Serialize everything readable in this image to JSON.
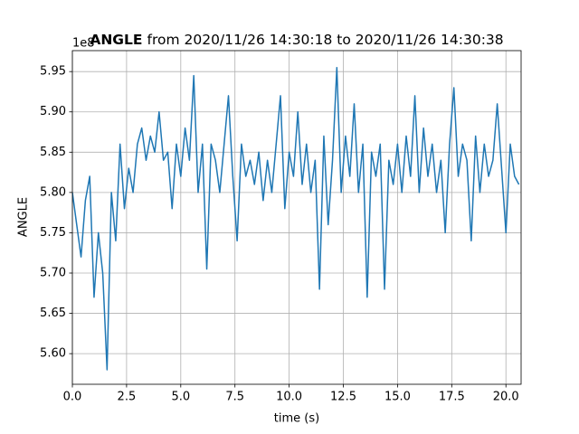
{
  "chart_data": {
    "type": "line",
    "title": {
      "variable": "ANGLE",
      "range": "from 2020/11/26 14:30:18 to 2020/11/26 14:30:38"
    },
    "x_label": "time (s)",
    "y_label": "ANGLE",
    "y_offset_label": "1e8",
    "color": "#1f77b4",
    "grid": true,
    "xlim": [
      0,
      20.7
    ],
    "ylim": [
      5.562,
      5.976
    ],
    "xticks": [
      {
        "value": 0,
        "label": "0.0"
      },
      2.5,
      {
        "value": 5,
        "label": "5.0"
      },
      7.5,
      {
        "value": 10,
        "label": "10.0"
      },
      12.5,
      {
        "value": 15,
        "label": "15.0"
      },
      17.5,
      {
        "value": 20,
        "label": "20.0"
      }
    ],
    "yticks": [
      {
        "value": 5.6,
        "label": "5.60"
      },
      5.65,
      {
        "value": 5.7,
        "label": "5.70"
      },
      5.75,
      {
        "value": 5.8,
        "label": "5.80"
      },
      5.85,
      {
        "value": 5.9,
        "label": "5.90"
      },
      5.95
    ],
    "x": [
      0,
      0.2,
      0.4,
      0.6,
      0.8,
      1,
      1.2,
      1.4,
      1.6,
      1.8,
      2,
      2.2,
      2.4,
      2.6,
      2.8,
      3,
      3.2,
      3.4,
      3.6,
      3.8,
      4,
      4.2,
      4.4,
      4.6,
      4.8,
      5,
      5.2,
      5.4,
      5.6,
      5.8,
      6,
      6.2,
      6.4,
      6.6,
      6.8,
      7,
      7.2,
      7.4,
      7.6,
      7.8,
      8,
      8.2,
      8.4,
      8.6,
      8.8,
      9,
      9.2,
      9.4,
      9.6,
      9.8,
      10,
      10.2,
      10.4,
      10.6,
      10.8,
      11,
      11.2,
      11.4,
      11.6,
      11.8,
      12,
      12.2,
      12.4,
      12.6,
      12.8,
      13,
      13.2,
      13.4,
      13.6,
      13.8,
      14,
      14.2,
      14.4,
      14.6,
      14.8,
      15,
      15.2,
      15.4,
      15.6,
      15.8,
      16,
      16.2,
      16.4,
      16.6,
      16.8,
      17,
      17.2,
      17.4,
      17.6,
      17.8,
      18,
      18.2,
      18.4,
      18.6,
      18.8,
      19,
      19.2,
      19.4,
      19.6,
      19.8,
      20,
      20.2,
      20.4,
      20.6
    ],
    "values": [
      5.8,
      5.76,
      5.72,
      5.79,
      5.82,
      5.67,
      5.75,
      5.7,
      5.58,
      5.8,
      5.74,
      5.86,
      5.78,
      5.83,
      5.8,
      5.86,
      5.88,
      5.84,
      5.87,
      5.85,
      5.9,
      5.84,
      5.85,
      5.78,
      5.86,
      5.82,
      5.88,
      5.84,
      5.945,
      5.8,
      5.86,
      5.705,
      5.86,
      5.84,
      5.8,
      5.86,
      5.92,
      5.82,
      5.74,
      5.86,
      5.82,
      5.84,
      5.81,
      5.85,
      5.79,
      5.84,
      5.8,
      5.86,
      5.92,
      5.78,
      5.85,
      5.82,
      5.9,
      5.81,
      5.86,
      5.8,
      5.84,
      5.68,
      5.87,
      5.76,
      5.84,
      5.955,
      5.8,
      5.87,
      5.82,
      5.91,
      5.8,
      5.86,
      5.67,
      5.85,
      5.82,
      5.86,
      5.68,
      5.84,
      5.81,
      5.86,
      5.8,
      5.87,
      5.82,
      5.92,
      5.8,
      5.88,
      5.82,
      5.86,
      5.8,
      5.84,
      5.75,
      5.86,
      5.93,
      5.82,
      5.86,
      5.84,
      5.74,
      5.87,
      5.8,
      5.86,
      5.82,
      5.84,
      5.91,
      5.83,
      5.75,
      5.86,
      5.82,
      5.81
    ]
  }
}
